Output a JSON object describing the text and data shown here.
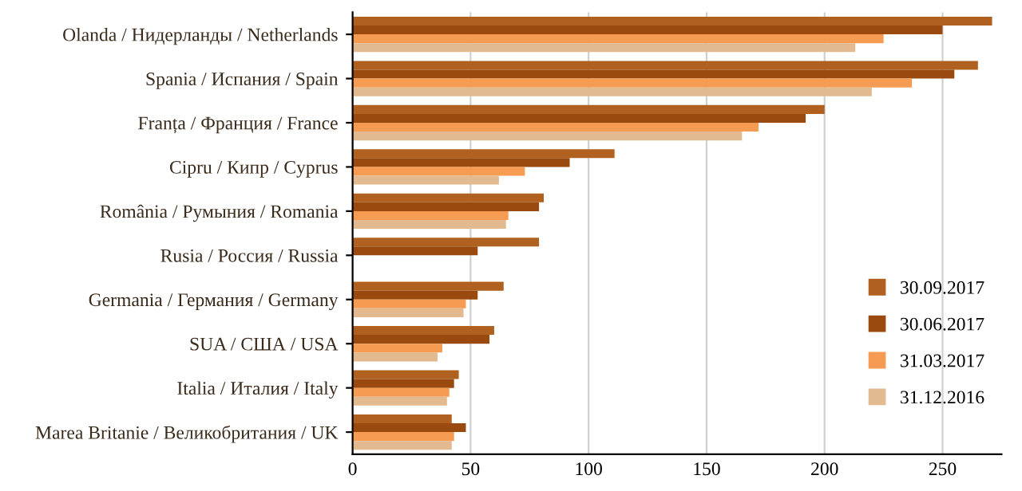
{
  "chart_data": {
    "type": "bar",
    "orientation": "horizontal",
    "categories": [
      "Olanda / Нидерланды / Netherlands",
      "Spania / Испания / Spain",
      "Franța / Франция / France",
      "Cipru / Кипр / Cyprus",
      "România / Румыния / Romania",
      "Rusia / Россия / Russia",
      "Germania / Германия / Germany",
      "SUA / США / USA",
      "Italia / Италия / Italy",
      "Marea Britanie / Великобритания / UK"
    ],
    "series": [
      {
        "name": "30.09.2017",
        "color": "#b0601f",
        "values": [
          271,
          265,
          200,
          111,
          81,
          79,
          64,
          60,
          45,
          42
        ]
      },
      {
        "name": "30.06.2017",
        "color": "#9a4a0e",
        "values": [
          250,
          255,
          192,
          92,
          79,
          53,
          53,
          58,
          43,
          48
        ]
      },
      {
        "name": "31.03.2017",
        "color": "#f59b52",
        "values": [
          225,
          237,
          172,
          73,
          66,
          null,
          48,
          38,
          41,
          43
        ]
      },
      {
        "name": "31.12.2016",
        "color": "#e3b98f",
        "values": [
          213,
          220,
          165,
          62,
          65,
          null,
          47,
          36,
          40,
          42
        ]
      }
    ],
    "xlim": [
      0,
      275
    ],
    "xticks": [
      0,
      50,
      100,
      150,
      200,
      250
    ],
    "grid": "x",
    "legend": "right"
  }
}
